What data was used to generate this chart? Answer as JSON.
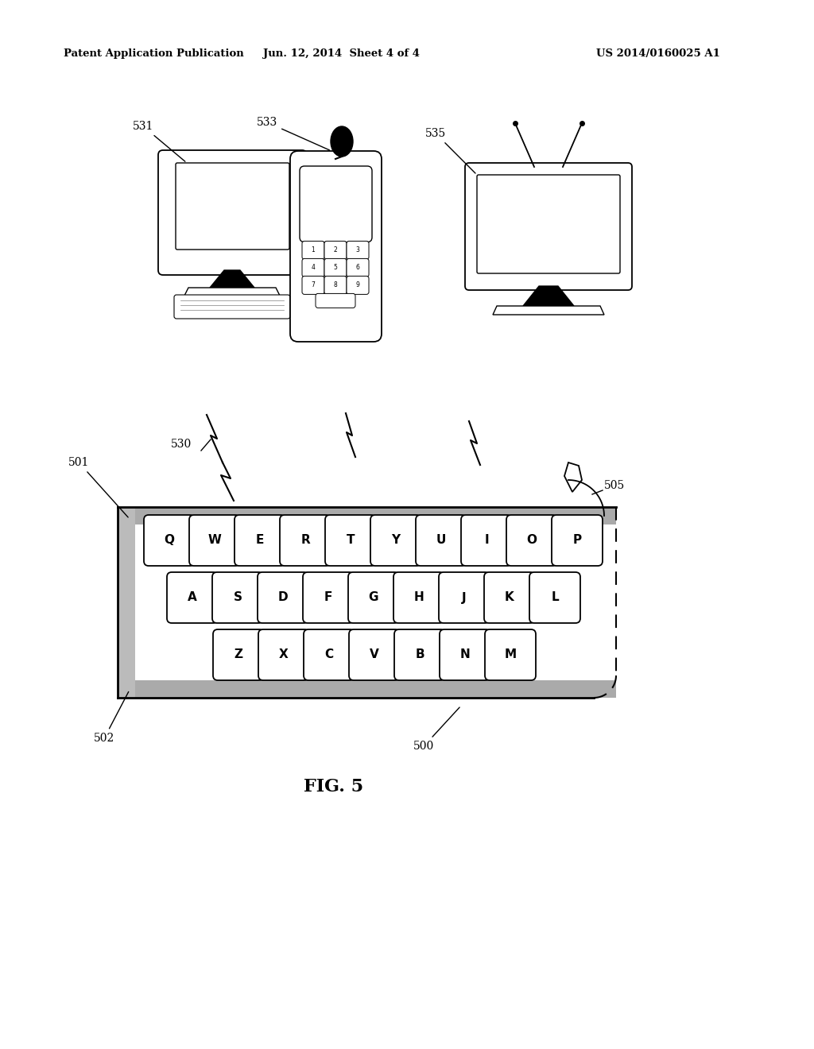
{
  "bg_color": "#ffffff",
  "header_left": "Patent Application Publication",
  "header_center": "Jun. 12, 2014  Sheet 4 of 4",
  "header_right": "US 2014/0160025 A1",
  "fig_label": "FIG. 5",
  "keyboard_row1": [
    "Q",
    "W",
    "E",
    "R",
    "T",
    "Y",
    "U",
    "I",
    "O",
    "P"
  ],
  "keyboard_row2": [
    "A",
    "S",
    "D",
    "F",
    "G",
    "H",
    "J",
    "K",
    "L"
  ],
  "keyboard_row3": [
    "Z",
    "X",
    "C",
    "V",
    "B",
    "N",
    "M"
  ]
}
